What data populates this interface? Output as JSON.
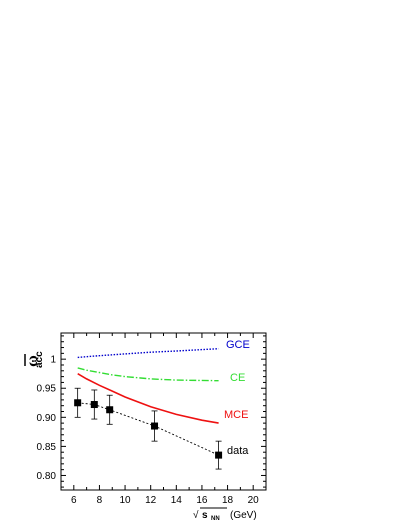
{
  "chart_data": {
    "type": "line",
    "x_axis": {
      "label_prefix": "√",
      "label_var": "s",
      "label_sub": "NN",
      "label_unit": "(GeV)",
      "range": [
        5,
        21
      ],
      "ticks": [
        6,
        8,
        10,
        12,
        14,
        16,
        18,
        20
      ]
    },
    "y_axis": {
      "label_symbol": "ω",
      "label_sub": "acc",
      "range": [
        0.775,
        1.045
      ],
      "ticks": [
        0.8,
        0.85,
        0.9,
        0.95,
        1.0
      ],
      "tick_labels": [
        "0.80",
        "0.85",
        "0.90",
        "0.95",
        "1"
      ]
    },
    "series": [
      {
        "name": "GCE",
        "color": "#0000cc",
        "style": "dotted",
        "points": [
          [
            6.3,
            1.003
          ],
          [
            8,
            1.006
          ],
          [
            10,
            1.009
          ],
          [
            12,
            1.012
          ],
          [
            14,
            1.014
          ],
          [
            17.3,
            1.018
          ]
        ]
      },
      {
        "name": "CE",
        "color": "#33dd33",
        "style": "dashdot",
        "points": [
          [
            6.3,
            0.985
          ],
          [
            7,
            0.981
          ],
          [
            8,
            0.977
          ],
          [
            9,
            0.973
          ],
          [
            10,
            0.97
          ],
          [
            12,
            0.966
          ],
          [
            14,
            0.964
          ],
          [
            17.3,
            0.963
          ]
        ]
      },
      {
        "name": "MCE",
        "color": "#ee1111",
        "style": "solid",
        "points": [
          [
            6.3,
            0.975
          ],
          [
            7,
            0.966
          ],
          [
            8,
            0.955
          ],
          [
            9,
            0.945
          ],
          [
            10,
            0.935
          ],
          [
            12,
            0.918
          ],
          [
            14,
            0.905
          ],
          [
            16,
            0.895
          ],
          [
            17.3,
            0.89
          ]
        ]
      },
      {
        "name": "data",
        "color": "#000000",
        "style": "dashed-markers",
        "points": [
          [
            6.3,
            0.925
          ],
          [
            7.6,
            0.922
          ],
          [
            8.8,
            0.913
          ],
          [
            12.3,
            0.885
          ],
          [
            17.3,
            0.835
          ]
        ],
        "errors": [
          0.025,
          0.025,
          0.025,
          0.026,
          0.024
        ]
      }
    ]
  }
}
